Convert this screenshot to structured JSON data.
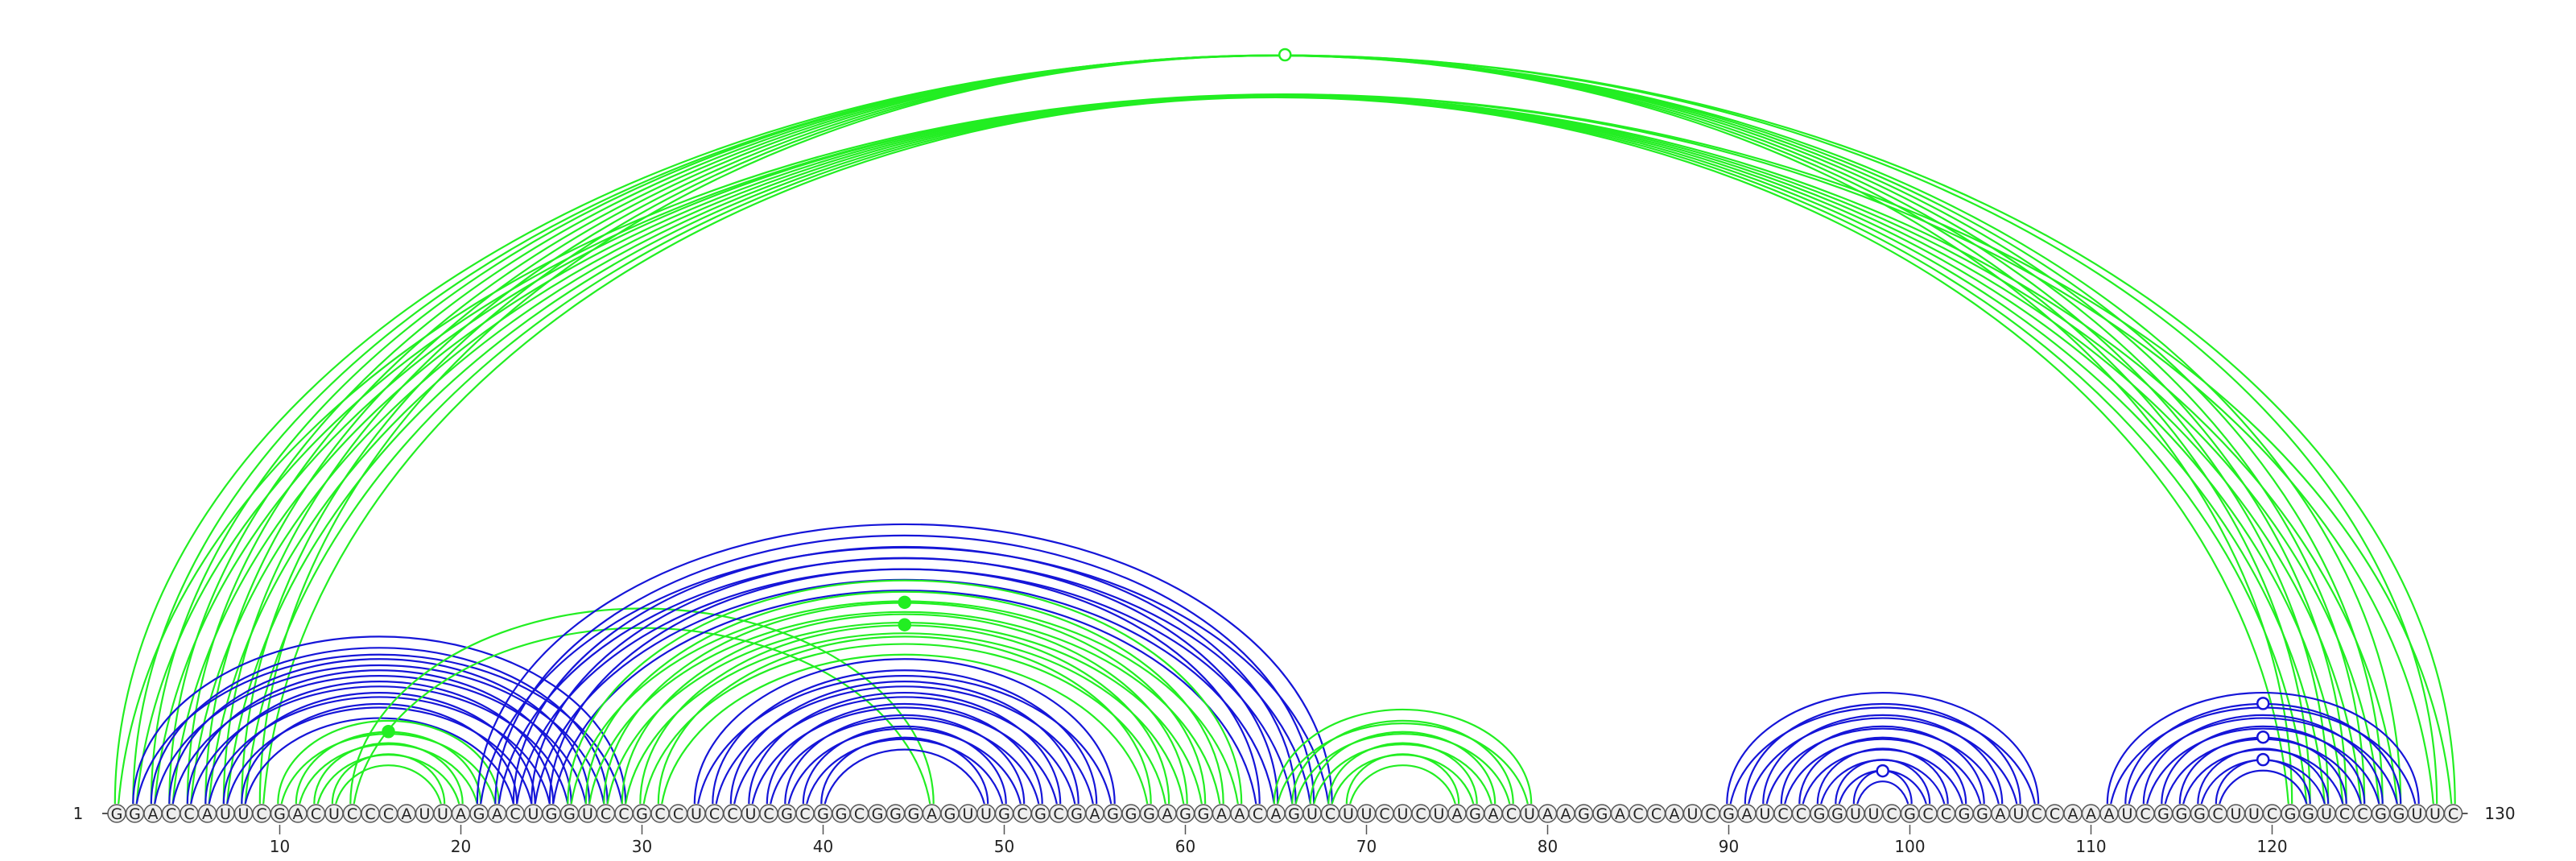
{
  "sequence": "GGACCAUUCGACUCCCAUUAGACUGGUCCGCCUCCUCGCGGCGGGAGUUGCGCGAGGGAGGAACAGUCUUCUCUAGACUAAGGACCAUCGAUCCGGUUCGCCGGAUCCAAAUCGGGCUUCGGUCCGGUUC",
  "start_label": "1",
  "end_label": "130",
  "ticks": [
    "10",
    "20",
    "30",
    "40",
    "50",
    "60",
    "70",
    "80",
    "90",
    "100",
    "110",
    "120"
  ],
  "tick_positions": [
    10,
    20,
    30,
    40,
    50,
    60,
    70,
    80,
    90,
    100,
    110,
    120
  ],
  "colors": {
    "green": "#22ee22",
    "blue": "#1515d8",
    "nucleotide_fill": "#eeeeee",
    "nucleotide_stroke": "#555555",
    "axis": "#555555"
  },
  "arc_groups": [
    {
      "color": "green",
      "pairs": [
        [
          1,
          130
        ],
        [
          2,
          129
        ],
        [
          3,
          127
        ],
        [
          4,
          126
        ],
        [
          5,
          125
        ],
        [
          6,
          124
        ],
        [
          7,
          123
        ],
        [
          8,
          122
        ],
        [
          9,
          121
        ]
      ]
    },
    {
      "color": "blue",
      "pairs": [
        [
          2,
          29
        ],
        [
          3,
          28
        ],
        [
          4,
          27
        ],
        [
          5,
          26
        ],
        [
          6,
          25
        ],
        [
          7,
          24
        ],
        [
          8,
          23
        ]
      ]
    },
    {
      "color": "green",
      "pairs": [
        [
          10,
          22
        ],
        [
          11,
          21
        ],
        [
          12,
          20
        ],
        [
          13,
          19
        ]
      ]
    },
    {
      "color": "green",
      "pairs": [
        [
          14,
          46
        ]
      ]
    },
    {
      "color": "blue",
      "pairs": [
        [
          21,
          68
        ],
        [
          22,
          67
        ],
        [
          23,
          66
        ],
        [
          24,
          65
        ],
        [
          25,
          64
        ]
      ]
    },
    {
      "color": "green",
      "pairs": [
        [
          26,
          63
        ],
        [
          27,
          62
        ],
        [
          28,
          61
        ],
        [
          29,
          60
        ],
        [
          30,
          59
        ],
        [
          31,
          58
        ]
      ]
    },
    {
      "color": "blue",
      "pairs": [
        [
          33,
          56
        ],
        [
          34,
          55
        ],
        [
          35,
          54
        ],
        [
          36,
          53
        ],
        [
          37,
          52
        ],
        [
          38,
          51
        ],
        [
          39,
          50
        ],
        [
          40,
          49
        ]
      ]
    },
    {
      "color": "green",
      "pairs": [
        [
          65,
          79
        ],
        [
          66,
          78
        ],
        [
          67,
          77
        ],
        [
          68,
          76
        ],
        [
          69,
          75
        ]
      ]
    },
    {
      "color": "blue",
      "pairs": [
        [
          90,
          107
        ],
        [
          91,
          106
        ],
        [
          92,
          105
        ],
        [
          93,
          104
        ],
        [
          94,
          103
        ],
        [
          95,
          102
        ],
        [
          96,
          101
        ],
        [
          97,
          100
        ]
      ]
    },
    {
      "color": "blue",
      "pairs": [
        [
          111,
          128
        ],
        [
          112,
          127
        ],
        [
          113,
          126
        ],
        [
          114,
          125
        ],
        [
          115,
          124
        ],
        [
          116,
          123
        ],
        [
          117,
          122
        ]
      ]
    }
  ],
  "markers": [
    {
      "i": 1,
      "j": 130,
      "color": "green",
      "filled": false
    },
    {
      "i": 11,
      "j": 21,
      "color": "green",
      "filled": true
    },
    {
      "i": 28,
      "j": 61,
      "color": "green",
      "filled": true
    },
    {
      "i": 30,
      "j": 59,
      "color": "green",
      "filled": true
    },
    {
      "i": 112,
      "j": 127,
      "color": "blue",
      "filled": false
    },
    {
      "i": 115,
      "j": 124,
      "color": "blue",
      "filled": false
    },
    {
      "i": 117,
      "j": 122,
      "color": "blue",
      "filled": false
    },
    {
      "i": 97,
      "j": 100,
      "color": "blue",
      "filled": false
    }
  ]
}
